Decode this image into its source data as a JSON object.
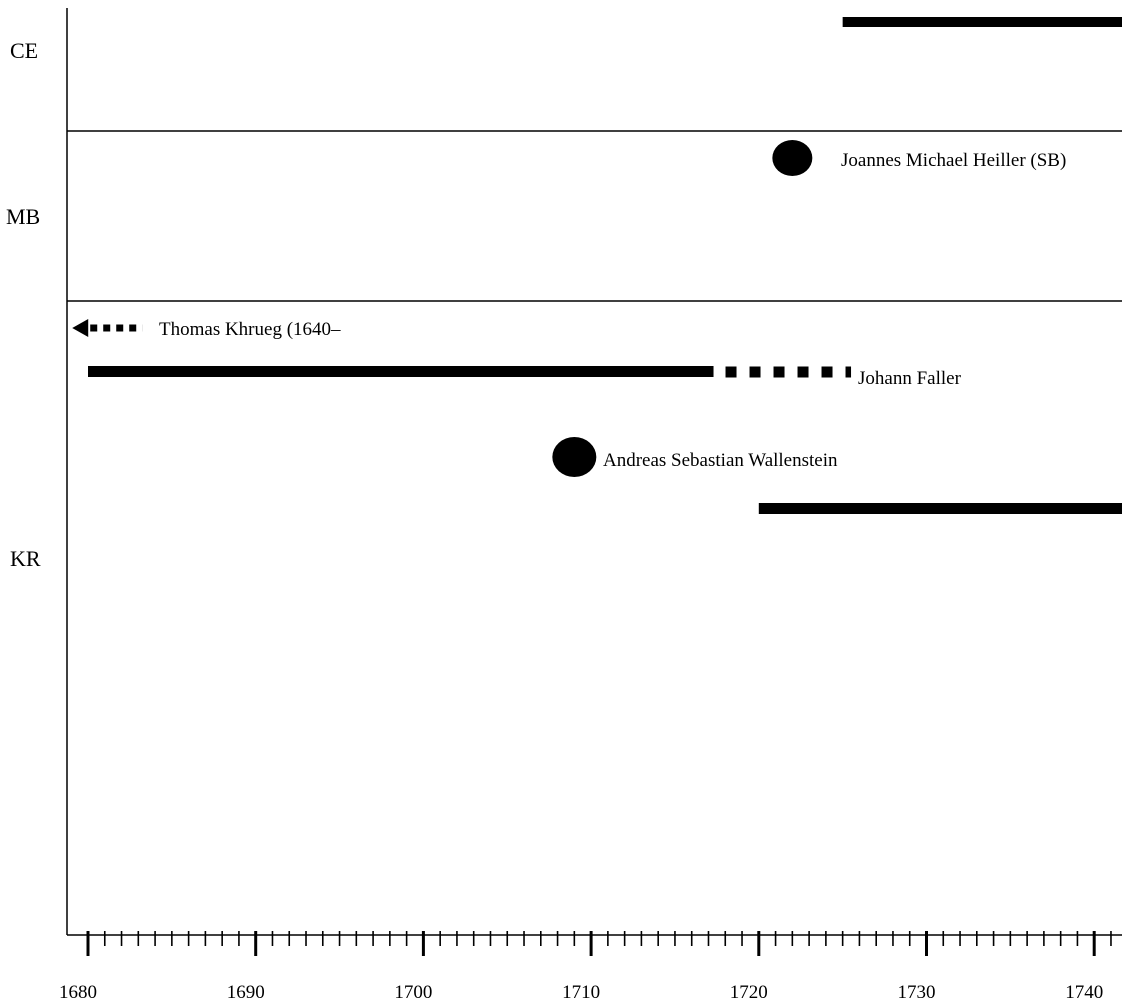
{
  "chart_data": {
    "type": "timeline",
    "xlim": [
      1679,
      1742
    ],
    "x_ticks": [
      "1680",
      "1690",
      "1700",
      "1710",
      "1720",
      "1730",
      "1740"
    ],
    "rows": [
      {
        "label": "CE"
      },
      {
        "label": "MB"
      },
      {
        "label": "KR"
      }
    ],
    "items": [
      {
        "row": "CE",
        "kind": "solid",
        "start": 1725,
        "end": 1742
      },
      {
        "row": "MB",
        "kind": "dot",
        "at": 1722,
        "label": "Joannes Michael Heiller (SB)"
      },
      {
        "row": "KR",
        "kind": "arrow-left-dotted",
        "start": 1679,
        "end": 1683,
        "label": "Thomas Khrueg (1640–"
      },
      {
        "row": "KR",
        "kind": "solid",
        "start": 1680,
        "end": 1717.3,
        "label": ""
      },
      {
        "row": "KR",
        "kind": "dotted",
        "start": 1717.3,
        "end": 1725.5,
        "label": "Johann Faller"
      },
      {
        "row": "KR",
        "kind": "dot",
        "at": 1709,
        "label": "Andreas Sebastian Wallenstein"
      },
      {
        "row": "KR",
        "kind": "solid",
        "start": 1720,
        "end": 1742
      },
      {
        "row": "KR",
        "kind": "square",
        "at": 1741.7
      }
    ],
    "colors": {
      "ink": "#000000",
      "background": "#ffffff"
    }
  }
}
